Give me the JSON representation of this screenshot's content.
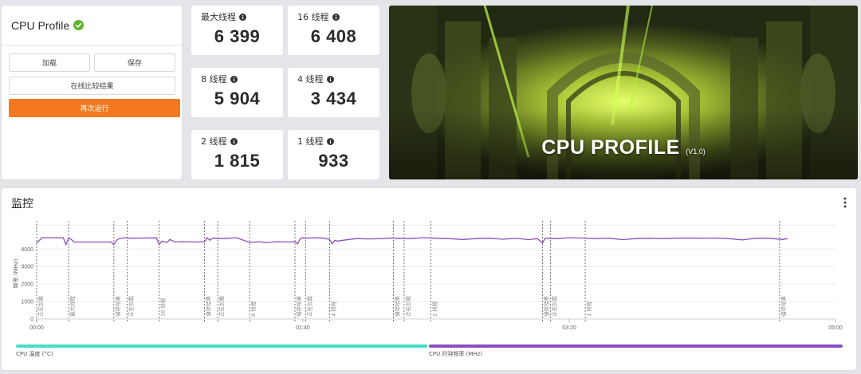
{
  "app": {
    "title": "CPU Profile",
    "buttons": {
      "load": "加载",
      "save": "保存",
      "compare": "在线比较结果",
      "rerun": "再次运行"
    }
  },
  "scores": [
    {
      "label": "最大线程",
      "value": "6 399"
    },
    {
      "label": "16 线程",
      "value": "6 408"
    },
    {
      "label": "8 线程",
      "value": "5 904"
    },
    {
      "label": "4 线程",
      "value": "3 434"
    },
    {
      "label": "2 线程",
      "value": "1 815"
    },
    {
      "label": "1 线程",
      "value": "933"
    }
  ],
  "hero": {
    "title": "CPU PROFILE",
    "version": "(V1.0)"
  },
  "monitor": {
    "title": "监控",
    "legend": [
      {
        "label": "CPU 温度 (°C)",
        "color": "#45dcc8"
      },
      {
        "label": "CPU 时钟频率 (MHz)",
        "color": "#8a4fbf"
      }
    ]
  },
  "chart_data": {
    "type": "line",
    "ylabel": "频率 (MHz)",
    "yticks": [
      0,
      1000,
      2000,
      3000,
      4000
    ],
    "ylim": [
      0,
      5200
    ],
    "xticks": [
      "00:00",
      "01:40",
      "03:20",
      "05:00"
    ],
    "xlim_seconds": [
      0,
      300
    ],
    "markers": [
      {
        "t": 0,
        "label": "正在加载"
      },
      {
        "t": 12,
        "label": "最大线程"
      },
      {
        "t": 29,
        "label": "储存结果"
      },
      {
        "t": 34,
        "label": "正在加载"
      },
      {
        "t": 46,
        "label": "16 线程"
      },
      {
        "t": 63,
        "label": "储存结果"
      },
      {
        "t": 68,
        "label": "正在加载"
      },
      {
        "t": 80,
        "label": "8 线程"
      },
      {
        "t": 97,
        "label": "储存结果"
      },
      {
        "t": 101,
        "label": "正在加载"
      },
      {
        "t": 110,
        "label": "4 线程"
      },
      {
        "t": 134,
        "label": "储存结果"
      },
      {
        "t": 138,
        "label": "正在加载"
      },
      {
        "t": 148,
        "label": "2 线程"
      },
      {
        "t": 190,
        "label": "储存结果"
      },
      {
        "t": 193,
        "label": "正在加载"
      },
      {
        "t": 206,
        "label": "1 线程"
      },
      {
        "t": 279,
        "label": "储存结果"
      }
    ],
    "series": [
      {
        "name": "CPU 时钟频率 (MHz)",
        "color": "#8a4fbf",
        "x": [
          0,
          2,
          5,
          8,
          10,
          11,
          12,
          13,
          14,
          16,
          20,
          24,
          28,
          29,
          30,
          31,
          33,
          35,
          40,
          45,
          46,
          47,
          49,
          50,
          52,
          55,
          60,
          63,
          64,
          65,
          66,
          70,
          75,
          80,
          82,
          84,
          86,
          90,
          95,
          97,
          98,
          99,
          100,
          101,
          105,
          108,
          110,
          111,
          112,
          113,
          115,
          120,
          125,
          130,
          134,
          135,
          136,
          140,
          145,
          150,
          155,
          160,
          165,
          170,
          175,
          180,
          185,
          188,
          190,
          191,
          195,
          200,
          205,
          210,
          215,
          220,
          225,
          230,
          235,
          240,
          245,
          250,
          255,
          260,
          265,
          270,
          275,
          280,
          282
        ],
        "y": [
          4350,
          4650,
          4650,
          4650,
          4650,
          4250,
          4650,
          4550,
          4400,
          4400,
          4400,
          4400,
          4400,
          4250,
          4500,
          4600,
          4650,
          4620,
          4630,
          4640,
          4250,
          4450,
          4380,
          4550,
          4400,
          4420,
          4400,
          4420,
          4650,
          4500,
          4620,
          4600,
          4650,
          4380,
          4400,
          4420,
          4360,
          4420,
          4400,
          4420,
          4300,
          4600,
          4650,
          4620,
          4650,
          4620,
          4550,
          4300,
          4500,
          4450,
          4500,
          4600,
          4580,
          4600,
          4640,
          4600,
          4620,
          4600,
          4650,
          4620,
          4600,
          4550,
          4600,
          4620,
          4560,
          4610,
          4540,
          4600,
          4350,
          4620,
          4600,
          4650,
          4630,
          4600,
          4620,
          4540,
          4600,
          4620,
          4600,
          4620,
          4630,
          4620,
          4630,
          4600,
          4520,
          4620,
          4620,
          4550,
          4600
        ]
      }
    ],
    "grid": true
  }
}
